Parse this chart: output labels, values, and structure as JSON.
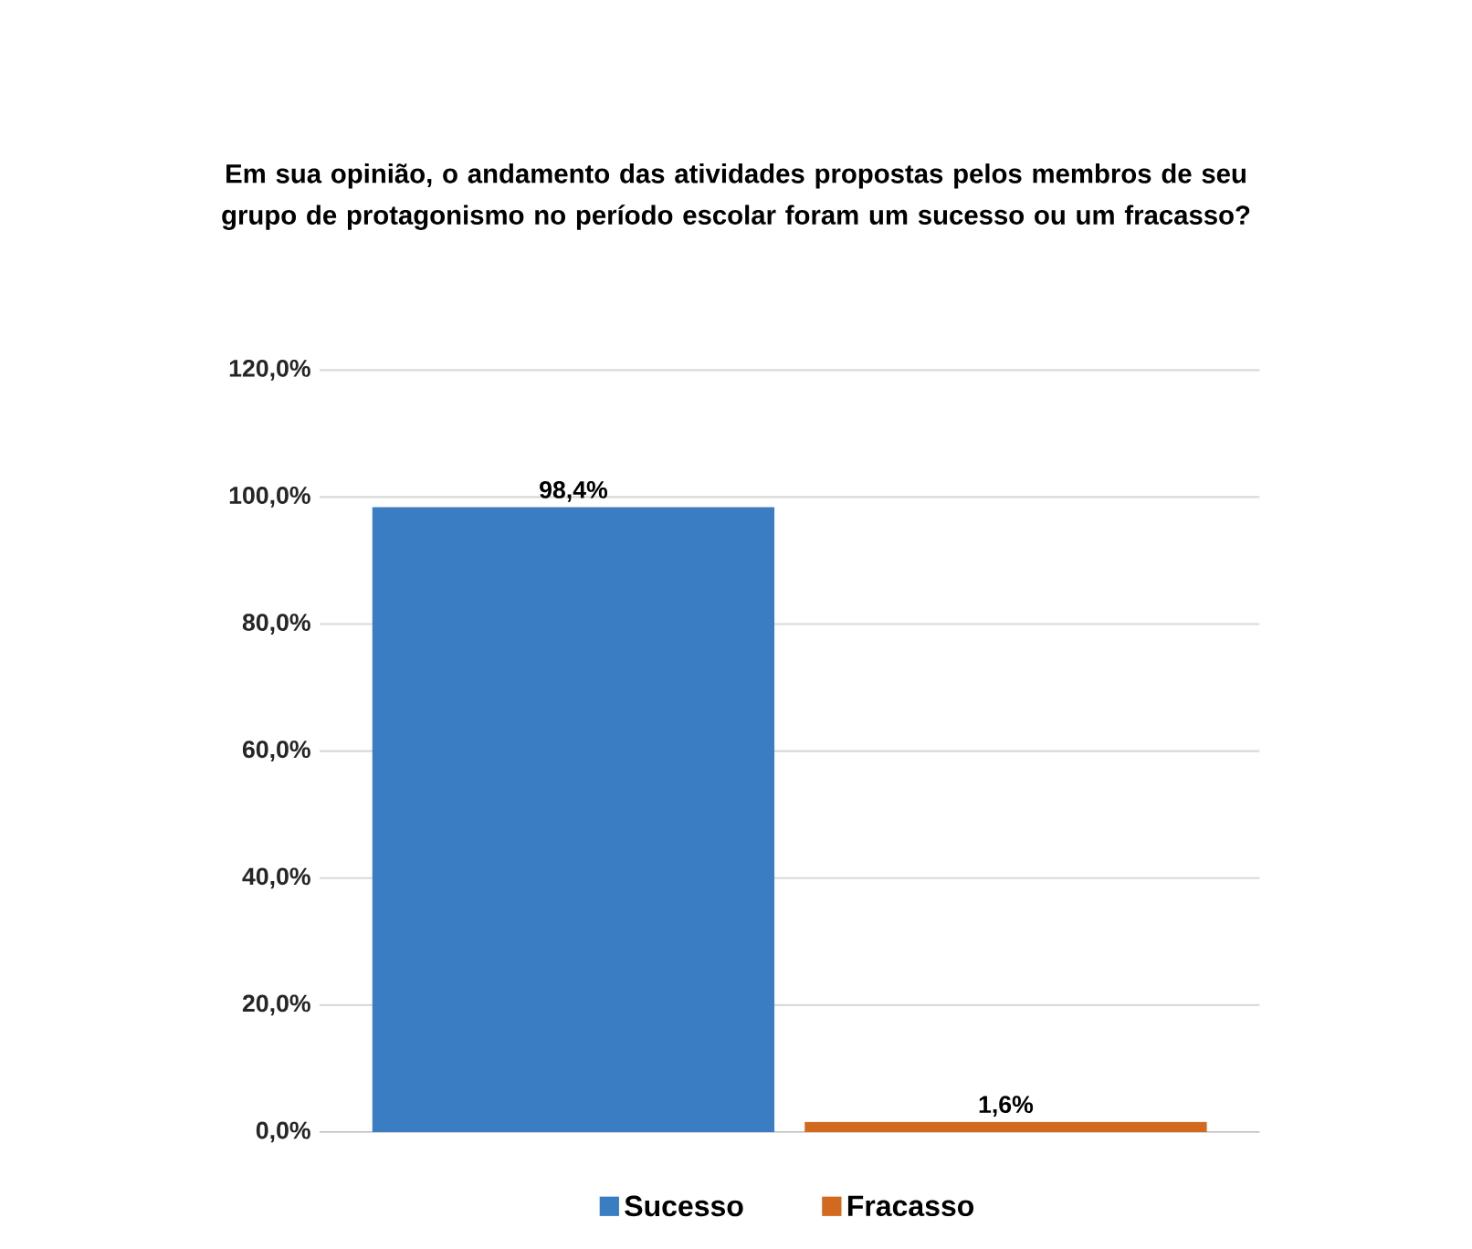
{
  "chart_data": {
    "type": "bar",
    "title": "Em sua opinião, o andamento das atividades propostas pelos membros de seu grupo de protagonismo no período escolar foram um sucesso ou um fracasso?",
    "categories": [
      null
    ],
    "series": [
      {
        "name": "Sucesso",
        "color": "#3a7dc3",
        "values": [
          98.4
        ],
        "value_labels": [
          "98,4%"
        ]
      },
      {
        "name": "Fracasso",
        "color": "#d2691e",
        "values": [
          1.6
        ],
        "value_labels": [
          "1,6%"
        ]
      }
    ],
    "ylim": [
      0,
      120
    ],
    "yticks": [
      {
        "value": 0,
        "label": "0,0%"
      },
      {
        "value": 20,
        "label": "20,0%"
      },
      {
        "value": 40,
        "label": "40,0%"
      },
      {
        "value": 60,
        "label": "60,0%"
      },
      {
        "value": 80,
        "label": "80,0%"
      },
      {
        "value": 100,
        "label": "100,0%"
      },
      {
        "value": 120,
        "label": "120,0%"
      }
    ],
    "tick_labels": "y",
    "grid": "y",
    "legend": "bottom"
  }
}
